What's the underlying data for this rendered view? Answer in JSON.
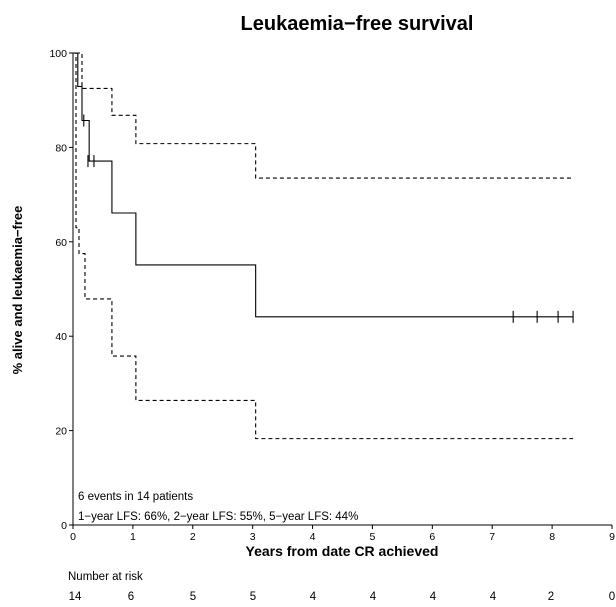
{
  "chart_data": {
    "type": "line",
    "title": "Leukaemia−free survival",
    "xlabel": "Years from date CR achieved",
    "ylabel": "% alive and leukaemia−free",
    "xlim": [
      0,
      9
    ],
    "ylim": [
      0,
      100
    ],
    "xticks": [
      0,
      1,
      2,
      3,
      4,
      5,
      6,
      7,
      8,
      9
    ],
    "yticks": [
      0,
      20,
      40,
      60,
      80,
      100
    ],
    "grid": false,
    "series": [
      {
        "role": "estimate",
        "style": "solid",
        "steps": [
          [
            0,
            100
          ],
          [
            0.08,
            92.9
          ],
          [
            0.15,
            85.7
          ],
          [
            0.27,
            77.1
          ],
          [
            0.65,
            66.1
          ],
          [
            1.05,
            55.1
          ],
          [
            3.05,
            44.1
          ],
          [
            8.35,
            44.1
          ]
        ],
        "censored": [
          [
            0.18,
            85.7
          ],
          [
            0.25,
            77.1
          ],
          [
            0.35,
            77.1
          ],
          [
            7.35,
            44.1
          ],
          [
            7.75,
            44.1
          ],
          [
            8.1,
            44.1
          ],
          [
            8.35,
            44.1
          ]
        ]
      },
      {
        "role": "upper-ci",
        "style": "dashed",
        "steps": [
          [
            0.05,
            100
          ],
          [
            0.15,
            92.5
          ],
          [
            0.65,
            86.8
          ],
          [
            1.05,
            80.8
          ],
          [
            3.05,
            73.5
          ],
          [
            8.35,
            73.5
          ]
        ]
      },
      {
        "role": "lower-ci",
        "style": "dashed",
        "steps": [
          [
            0,
            100
          ],
          [
            0.05,
            63.0
          ],
          [
            0.1,
            57.5
          ],
          [
            0.2,
            47.9
          ],
          [
            0.65,
            35.8
          ],
          [
            1.05,
            26.4
          ],
          [
            3.05,
            18.3
          ],
          [
            8.35,
            18.3
          ]
        ]
      }
    ],
    "annotations": [
      "6 events in 14 patients",
      "1−year LFS: 66%, 2−year LFS: 55%, 5−year LFS: 44%"
    ],
    "risk_table": {
      "label": "Number at risk",
      "values": [
        "14",
        "6",
        "5",
        "5",
        "4",
        "4",
        "4",
        "4",
        "2",
        "0"
      ]
    }
  }
}
